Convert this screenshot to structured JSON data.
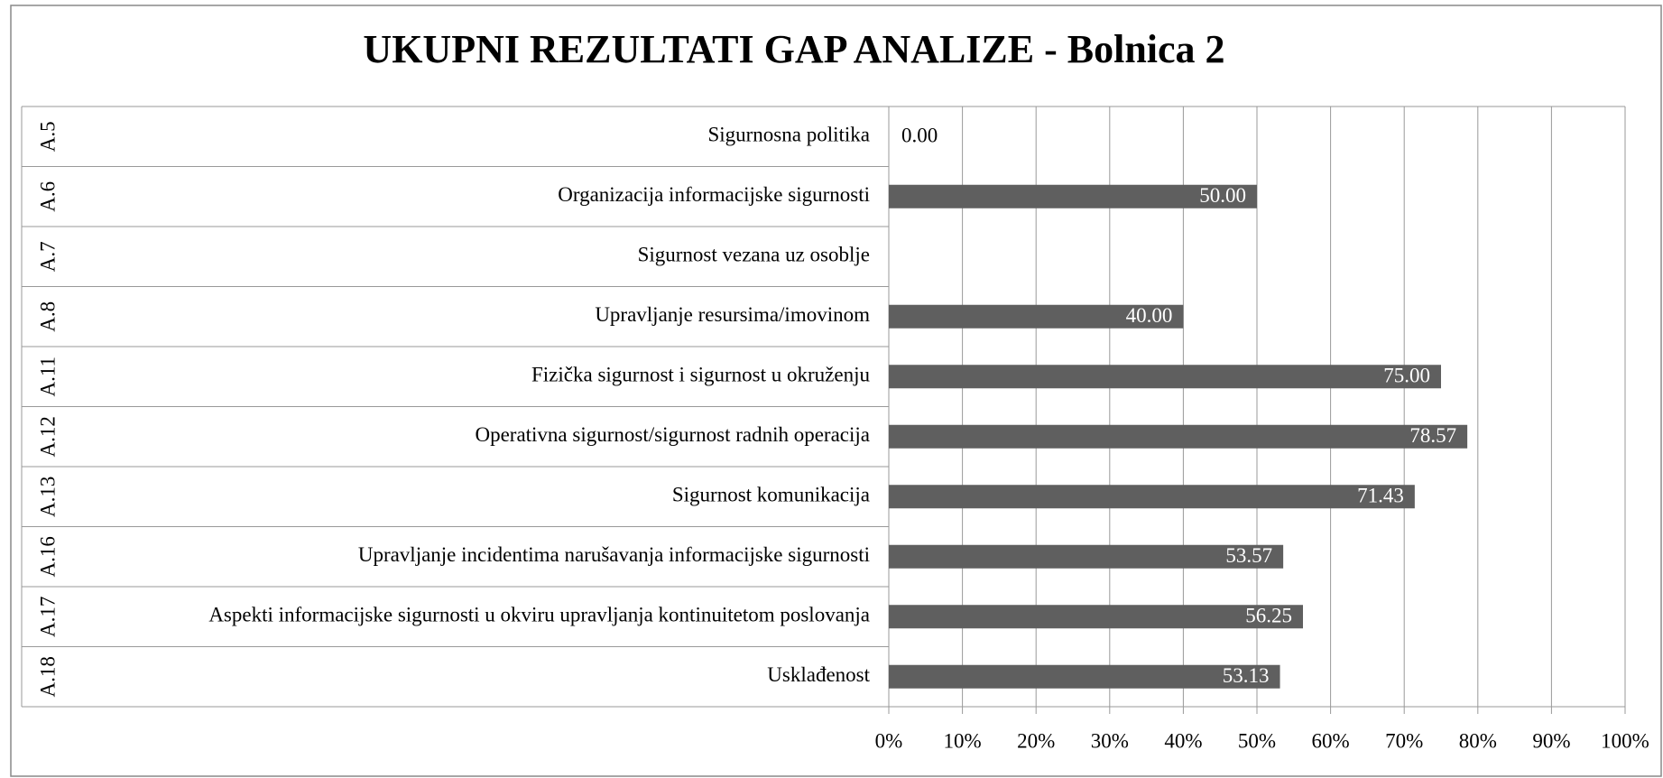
{
  "chart_data": {
    "type": "bar",
    "orientation": "horizontal",
    "title": "UKUPNI REZULTATI GAP ANALIZE - Bolnica 2",
    "codes": [
      "A.5",
      "A.6",
      "A.7",
      "A.8",
      "A.11",
      "A.12",
      "A.13",
      "A.16",
      "A.17",
      "A.18"
    ],
    "categories": [
      "Sigurnosna politika",
      "Organizacija informacijske sigurnosti",
      "Sigurnost vezana uz osoblje",
      "Upravljanje resursima/imovinom",
      "Fizička sigurnost i sigurnost u okruženju",
      "Operativna sigurnost/sigurnost radnih operacija",
      "Sigurnost komunikacija",
      "Upravljanje incidentima narušavanja informacijske sigurnosti",
      "Aspekti informacijske sigurnosti u okviru upravljanja kontinuitetom poslovanja",
      "Usklađenost"
    ],
    "values": [
      0,
      50,
      null,
      40,
      75,
      78.57,
      71.43,
      53.57,
      56.25,
      53.13
    ],
    "value_labels": [
      "0.00",
      "50.00",
      null,
      "40.00",
      "75.00",
      "78.57",
      "71.43",
      "53.57",
      "56.25",
      "53.13"
    ],
    "color": "#5f5f5f",
    "xlim": [
      0,
      100
    ],
    "xticks": [
      {
        "value": 0,
        "label": "0%"
      },
      {
        "value": 10,
        "label": "10%"
      },
      {
        "value": 20,
        "label": "20%"
      },
      {
        "value": 30,
        "label": "30%"
      },
      {
        "value": 40,
        "label": "40%"
      },
      {
        "value": 50,
        "label": "50%"
      },
      {
        "value": 60,
        "label": "60%"
      },
      {
        "value": 70,
        "label": "70%"
      },
      {
        "value": 80,
        "label": "80%"
      },
      {
        "value": 90,
        "label": "90%"
      },
      {
        "value": 100,
        "label": "100%"
      }
    ],
    "grid": true
  }
}
